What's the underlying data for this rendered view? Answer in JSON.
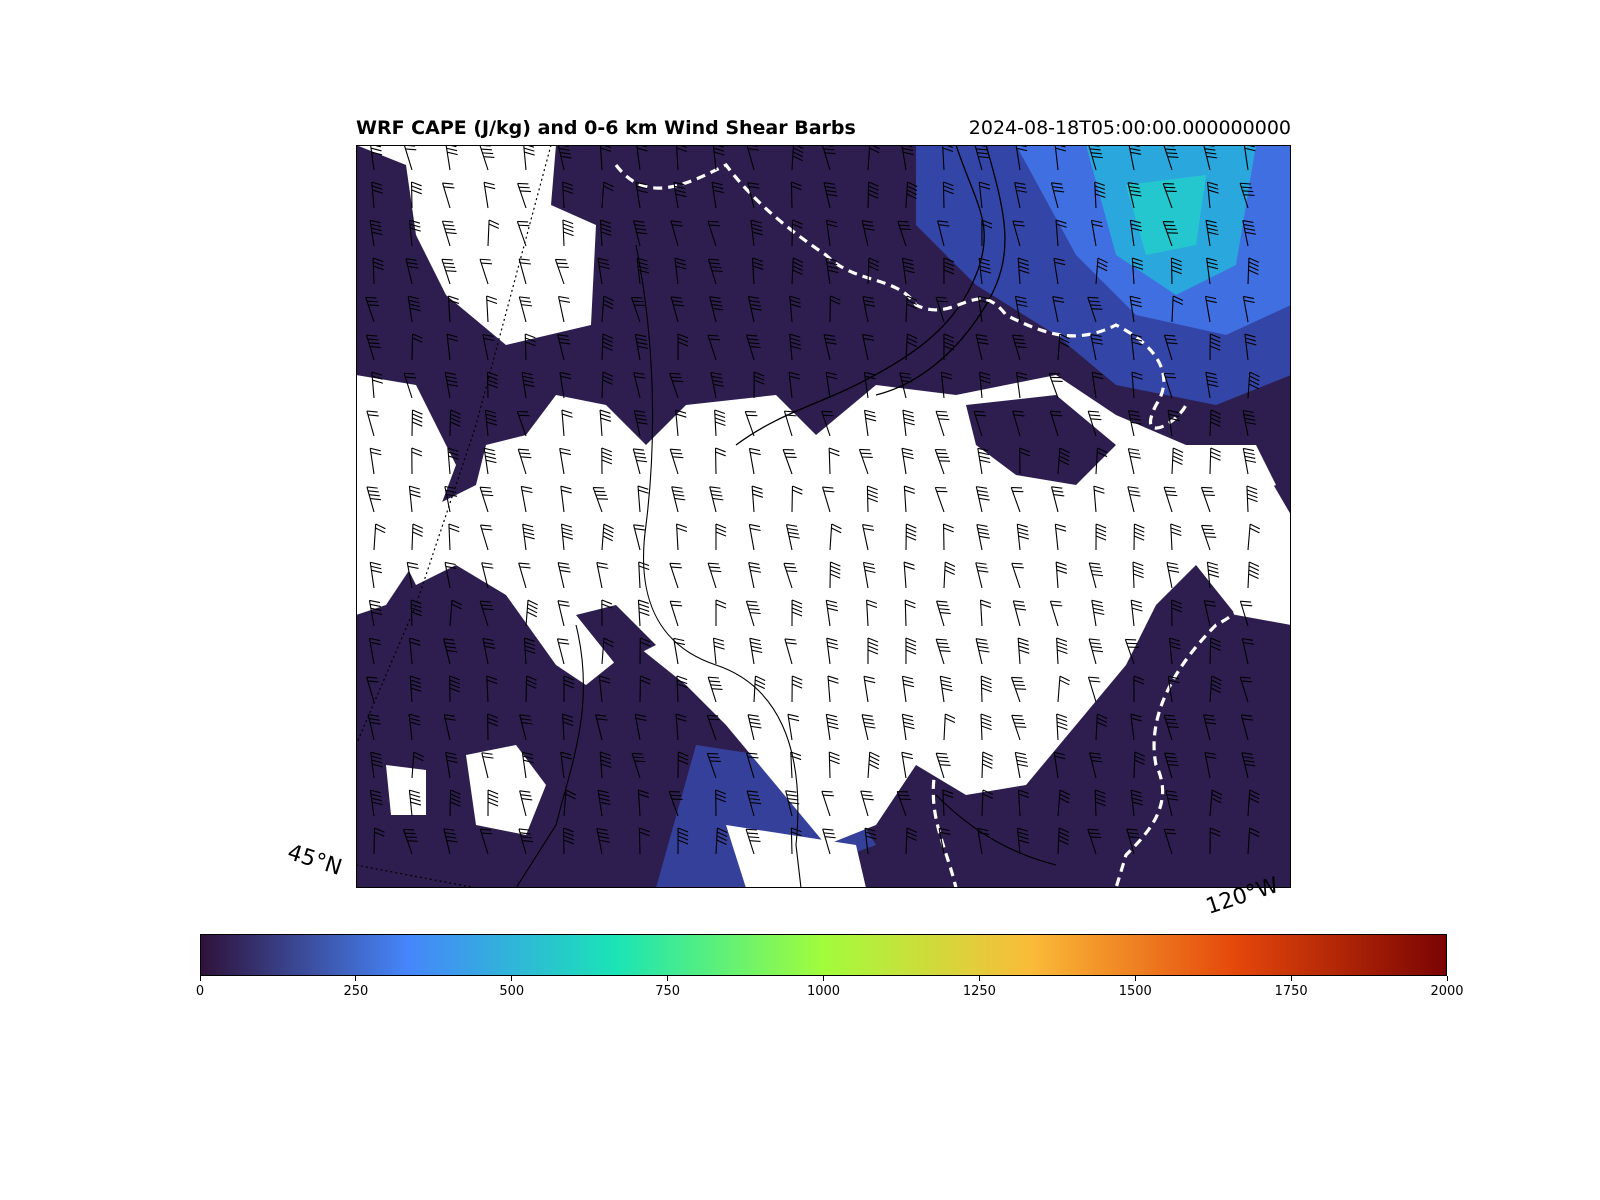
{
  "title": {
    "left": "WRF CAPE (J/kg) and 0-6 km Wind Shear Barbs",
    "right": "2024-08-18T05:00:00.000000000"
  },
  "map": {
    "lat_label": "45°N",
    "lon_label": "120°W",
    "background_color": "#ffffff",
    "cape_low_color": "#2d1e4f",
    "cape_mid_color": "#3f52c8",
    "cape_high_color": "#28bfd6",
    "contour_colors": [
      "#000000",
      "#ffffff"
    ]
  },
  "colorbar": {
    "min": 0,
    "max": 2000,
    "tick_labels": [
      "0",
      "250",
      "500",
      "750",
      "1000",
      "1250",
      "1500",
      "1750",
      "2000"
    ],
    "colormap": "turbo",
    "stops": [
      "#30123b",
      "#4686fb",
      "#1ae4b6",
      "#a2fc3c",
      "#fabb39",
      "#e4460a",
      "#7a0403"
    ]
  }
}
